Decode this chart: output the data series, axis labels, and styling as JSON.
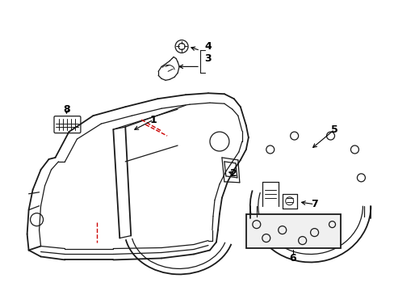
{
  "bg_color": "#ffffff",
  "line_color": "#1a1a1a",
  "red_color": "#cc0000",
  "label_color": "#000000",
  "figsize": [
    4.89,
    3.6
  ],
  "dpi": 100
}
